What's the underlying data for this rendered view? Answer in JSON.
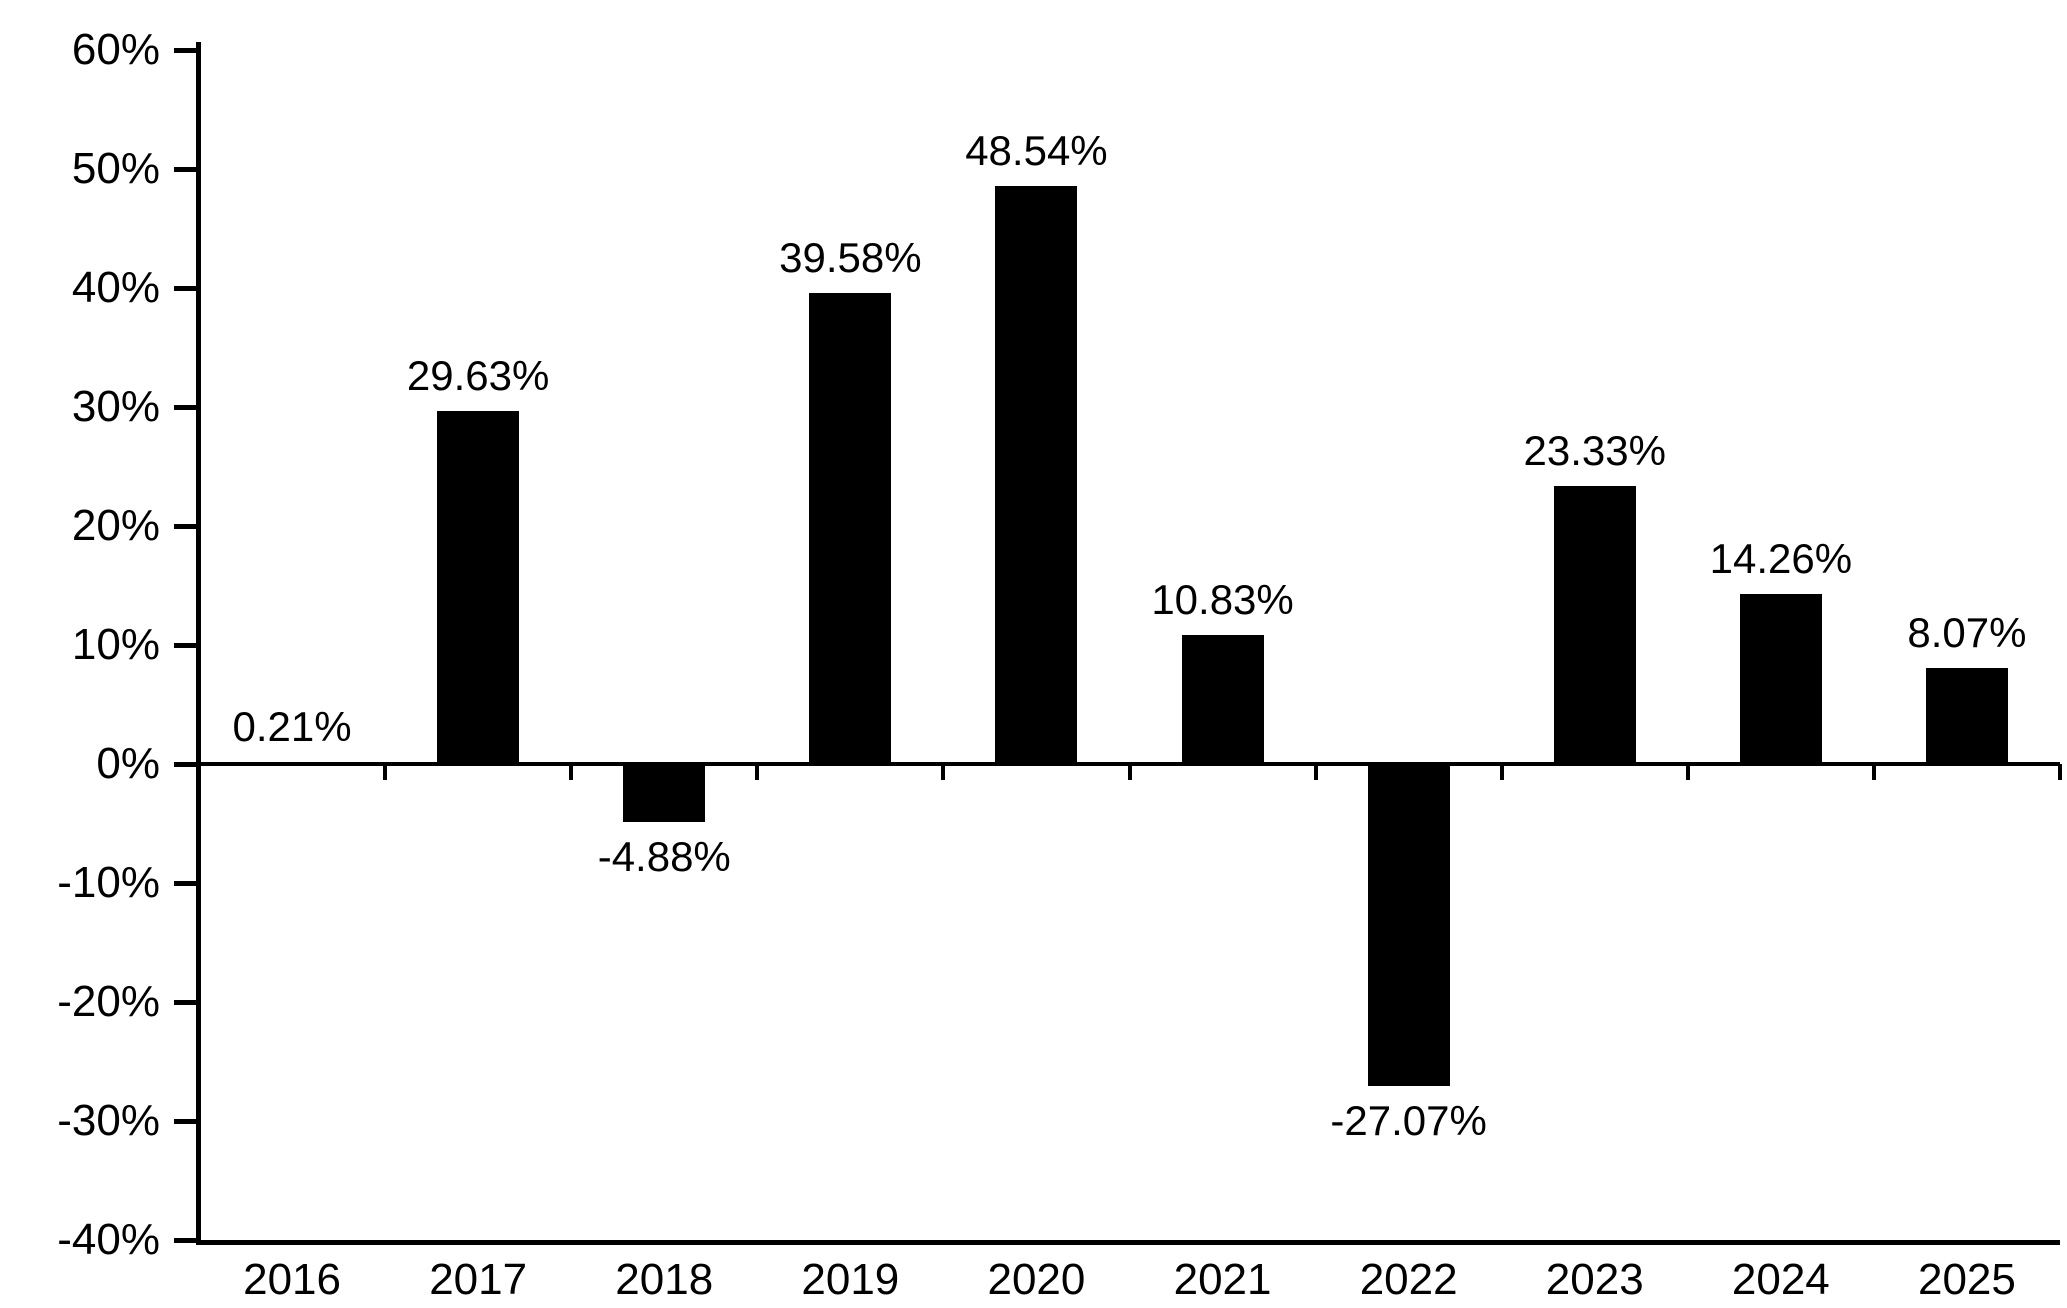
{
  "chart_data": {
    "type": "bar",
    "title": "",
    "xlabel": "",
    "ylabel": "",
    "categories": [
      "2016",
      "2017",
      "2018",
      "2019",
      "2020",
      "2021",
      "2022",
      "2023",
      "2024",
      "2025"
    ],
    "values": [
      0.21,
      29.63,
      -4.88,
      39.58,
      48.54,
      10.83,
      -27.07,
      23.33,
      14.26,
      8.07
    ],
    "labels": [
      "0.21%",
      "29.63%",
      "-4.88%",
      "39.58%",
      "48.54%",
      "10.83%",
      "-27.07%",
      "23.33%",
      "14.26%",
      "8.07%"
    ],
    "ylim": [
      -40,
      60
    ],
    "yticks": [
      60,
      50,
      40,
      30,
      20,
      10,
      0,
      -10,
      -20,
      -30,
      -40
    ],
    "ytick_labels": [
      "60%",
      "50%",
      "40%",
      "30%",
      "20%",
      "10%",
      "0%",
      "-10%",
      "-20%",
      "-30%",
      "-40%"
    ],
    "bar_color": "#000000",
    "axis_color": "#000000",
    "text_color": "#000000",
    "background_color": "#ffffff",
    "grid": false,
    "legend": false
  }
}
